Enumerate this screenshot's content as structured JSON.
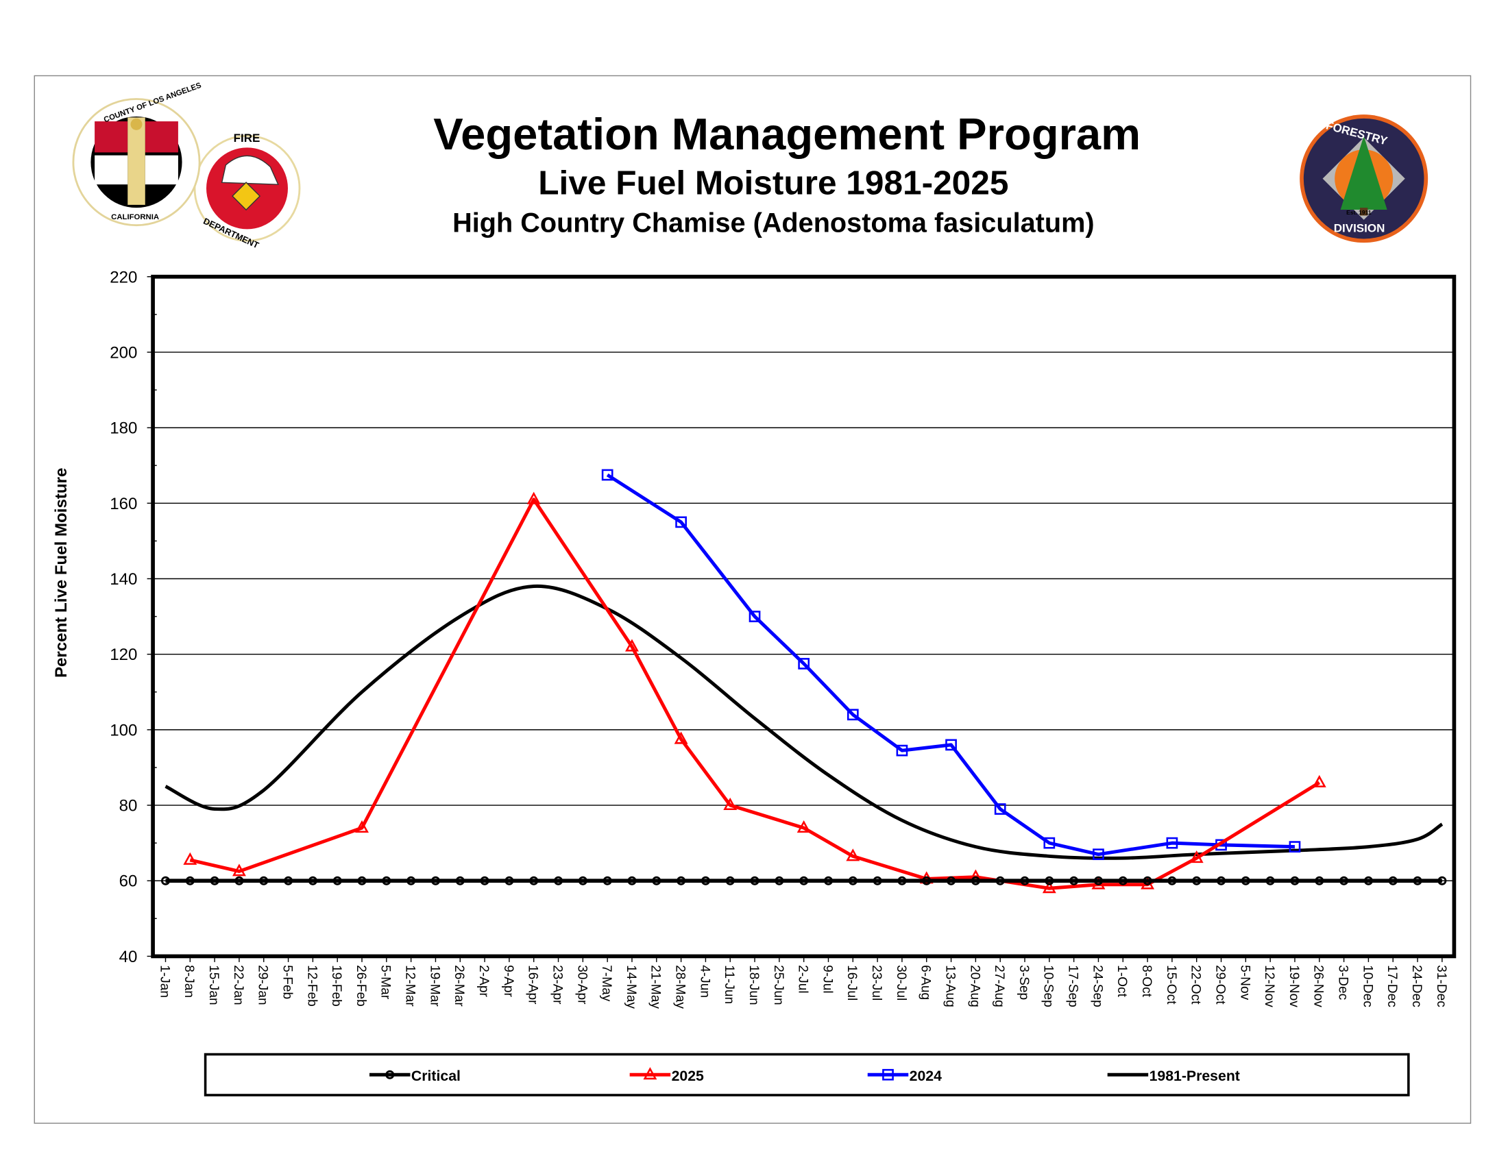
{
  "header": {
    "title": "Vegetation Management Program",
    "subtitle": "Live Fuel Moisture 1981-2025",
    "species": "High Country Chamise (Adenostoma fasiculatum)"
  },
  "logos": {
    "county_seal": "COUNTY OF LOS ANGELES CALIFORNIA",
    "fire_department": "FIRE DEPARTMENT",
    "forestry": "FORESTRY Est. 1911 DIVISION"
  },
  "chart_data": {
    "type": "line",
    "ylabel": "Percent Live Fuel Moisture",
    "ylim": [
      40,
      220
    ],
    "yticks": [
      40,
      60,
      80,
      100,
      120,
      140,
      160,
      180,
      200,
      220
    ],
    "grid": true,
    "legend_position": "bottom",
    "categories": [
      "1-Jan",
      "8-Jan",
      "15-Jan",
      "22-Jan",
      "29-Jan",
      "5-Feb",
      "12-Feb",
      "19-Feb",
      "26-Feb",
      "5-Mar",
      "12-Mar",
      "19-Mar",
      "26-Mar",
      "2-Apr",
      "9-Apr",
      "16-Apr",
      "23-Apr",
      "30-Apr",
      "7-May",
      "14-May",
      "21-May",
      "28-May",
      "4-Jun",
      "11-Jun",
      "18-Jun",
      "25-Jun",
      "2-Jul",
      "9-Jul",
      "16-Jul",
      "23-Jul",
      "30-Jul",
      "6-Aug",
      "13-Aug",
      "20-Aug",
      "27-Aug",
      "3-Sep",
      "10-Sep",
      "17-Sep",
      "24-Sep",
      "1-Oct",
      "8-Oct",
      "15-Oct",
      "22-Oct",
      "29-Oct",
      "5-Nov",
      "12-Nov",
      "19-Nov",
      "26-Nov",
      "3-Dec",
      "10-Dec",
      "17-Dec",
      "24-Dec",
      "31-Dec"
    ],
    "series": [
      {
        "name": "Critical",
        "color": "#000000",
        "marker": "circle",
        "smooth": false,
        "points": [
          [
            "1-Jan",
            60
          ],
          [
            "8-Jan",
            60
          ],
          [
            "15-Jan",
            60
          ],
          [
            "22-Jan",
            60
          ],
          [
            "29-Jan",
            60
          ],
          [
            "5-Feb",
            60
          ],
          [
            "12-Feb",
            60
          ],
          [
            "19-Feb",
            60
          ],
          [
            "26-Feb",
            60
          ],
          [
            "5-Mar",
            60
          ],
          [
            "12-Mar",
            60
          ],
          [
            "19-Mar",
            60
          ],
          [
            "26-Mar",
            60
          ],
          [
            "2-Apr",
            60
          ],
          [
            "9-Apr",
            60
          ],
          [
            "16-Apr",
            60
          ],
          [
            "23-Apr",
            60
          ],
          [
            "30-Apr",
            60
          ],
          [
            "7-May",
            60
          ],
          [
            "14-May",
            60
          ],
          [
            "21-May",
            60
          ],
          [
            "28-May",
            60
          ],
          [
            "4-Jun",
            60
          ],
          [
            "11-Jun",
            60
          ],
          [
            "18-Jun",
            60
          ],
          [
            "25-Jun",
            60
          ],
          [
            "2-Jul",
            60
          ],
          [
            "9-Jul",
            60
          ],
          [
            "16-Jul",
            60
          ],
          [
            "23-Jul",
            60
          ],
          [
            "30-Jul",
            60
          ],
          [
            "6-Aug",
            60
          ],
          [
            "13-Aug",
            60
          ],
          [
            "20-Aug",
            60
          ],
          [
            "27-Aug",
            60
          ],
          [
            "3-Sep",
            60
          ],
          [
            "10-Sep",
            60
          ],
          [
            "17-Sep",
            60
          ],
          [
            "24-Sep",
            60
          ],
          [
            "1-Oct",
            60
          ],
          [
            "8-Oct",
            60
          ],
          [
            "15-Oct",
            60
          ],
          [
            "22-Oct",
            60
          ],
          [
            "29-Oct",
            60
          ],
          [
            "5-Nov",
            60
          ],
          [
            "12-Nov",
            60
          ],
          [
            "19-Nov",
            60
          ],
          [
            "26-Nov",
            60
          ],
          [
            "3-Dec",
            60
          ],
          [
            "10-Dec",
            60
          ],
          [
            "17-Dec",
            60
          ],
          [
            "24-Dec",
            60
          ],
          [
            "31-Dec",
            60
          ]
        ]
      },
      {
        "name": "2025",
        "color": "#ff0000",
        "marker": "triangle",
        "smooth": false,
        "points": [
          [
            "8-Jan",
            65.5
          ],
          [
            "22-Jan",
            62.5
          ],
          [
            "26-Feb",
            74
          ],
          [
            "16-Apr",
            161
          ],
          [
            "14-May",
            122
          ],
          [
            "28-May",
            97.5
          ],
          [
            "11-Jun",
            80
          ],
          [
            "2-Jul",
            74
          ],
          [
            "16-Jul",
            66.5
          ],
          [
            "6-Aug",
            60.5
          ],
          [
            "20-Aug",
            61
          ],
          [
            "10-Sep",
            58
          ],
          [
            "24-Sep",
            59
          ],
          [
            "8-Oct",
            59
          ],
          [
            "22-Oct",
            66
          ],
          [
            "26-Nov",
            86
          ]
        ]
      },
      {
        "name": "2024",
        "color": "#0000ff",
        "marker": "square",
        "smooth": false,
        "points": [
          [
            "7-May",
            167.5
          ],
          [
            "28-May",
            155
          ],
          [
            "18-Jun",
            130
          ],
          [
            "2-Jul",
            117.5
          ],
          [
            "16-Jul",
            104
          ],
          [
            "30-Jul",
            94.5
          ],
          [
            "13-Aug",
            96
          ],
          [
            "27-Aug",
            79
          ],
          [
            "10-Sep",
            70
          ],
          [
            "24-Sep",
            67
          ],
          [
            "15-Oct",
            70
          ],
          [
            "29-Oct",
            69.5
          ],
          [
            "19-Nov",
            69
          ]
        ]
      },
      {
        "name": "1981-Present",
        "color": "#000000",
        "marker": "none",
        "smooth": true,
        "points": [
          [
            "1-Jan",
            85
          ],
          [
            "15-Jan",
            79
          ],
          [
            "29-Jan",
            84
          ],
          [
            "26-Feb",
            110
          ],
          [
            "26-Mar",
            130
          ],
          [
            "16-Apr",
            138
          ],
          [
            "7-May",
            132
          ],
          [
            "28-May",
            119
          ],
          [
            "18-Jun",
            103
          ],
          [
            "9-Jul",
            88
          ],
          [
            "30-Jul",
            76
          ],
          [
            "20-Aug",
            69
          ],
          [
            "10-Sep",
            66.5
          ],
          [
            "1-Oct",
            66
          ],
          [
            "22-Oct",
            67
          ],
          [
            "19-Nov",
            68
          ],
          [
            "10-Dec",
            69
          ],
          [
            "24-Dec",
            71
          ],
          [
            "31-Dec",
            75
          ]
        ]
      }
    ]
  }
}
